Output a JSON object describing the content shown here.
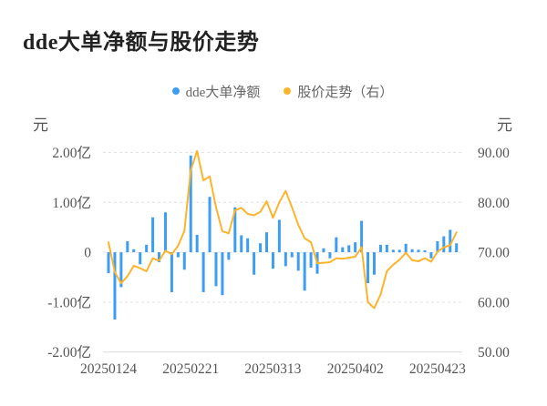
{
  "title": "dde大单净额与股价走势",
  "legend": {
    "items": [
      {
        "label": "dde大单净额",
        "color": "#3d9df2"
      },
      {
        "label": "股价走势（右）",
        "color": "#fcb42c"
      }
    ]
  },
  "left_axis": {
    "unit": "元",
    "tick_labels": [
      "2.00亿",
      "1.00亿",
      "0",
      "-1.00亿",
      "-2.00亿"
    ],
    "values": [
      2,
      1,
      0,
      -1,
      -2
    ]
  },
  "right_axis": {
    "unit": "元",
    "tick_labels": [
      "90.00",
      "80.00",
      "70.00",
      "60.00",
      "50.00"
    ],
    "values": [
      90,
      80,
      70,
      60,
      50
    ]
  },
  "x_axis": {
    "tick_labels": [
      "20250124",
      "20250221",
      "20250313",
      "20250402",
      "20250423"
    ],
    "tick_indices": [
      0,
      13,
      26,
      39,
      52
    ]
  },
  "chart_data": {
    "type": "bar+line",
    "title": "dde大单净额与股价走势",
    "x_tick_labels": [
      "20250124",
      "20250221",
      "20250313",
      "20250402",
      "20250423"
    ],
    "x_tick_indices": [
      0,
      13,
      26,
      39,
      52
    ],
    "left_ylim": [
      -2,
      2
    ],
    "left_unit": "亿元",
    "right_ylim": [
      50,
      90
    ],
    "right_unit": "元",
    "grid": "dashed",
    "legend_position": "top-center",
    "bar_series": {
      "name": "dde大单净额",
      "axis": "left",
      "unit": "亿元",
      "color": "#3d9df2",
      "values": [
        -0.42,
        -1.35,
        -0.7,
        0.22,
        0.06,
        -0.24,
        0.15,
        0.7,
        -0.2,
        0.8,
        -0.8,
        -0.1,
        -0.35,
        1.94,
        0.35,
        -0.8,
        1.11,
        -0.68,
        -0.86,
        -0.15,
        0.9,
        0.34,
        0.28,
        -0.45,
        0.18,
        0.4,
        -0.33,
        0.65,
        -0.28,
        -0.1,
        -0.37,
        -0.77,
        -0.31,
        -0.43,
        0.08,
        -0.12,
        0.3,
        0.1,
        0.14,
        0.2,
        0.63,
        -0.62,
        -0.45,
        0.15,
        0.15,
        0.05,
        0.05,
        0.17,
        0.06,
        0.05,
        0.04,
        -0.12,
        0.22,
        0.32,
        0.45,
        0.18
      ]
    },
    "line_series": {
      "name": "股价走势（右）",
      "axis": "right",
      "unit": "元",
      "color": "#fcb42c",
      "values": [
        72.0,
        66.0,
        63.8,
        65.2,
        67.3,
        66.8,
        66.2,
        68.8,
        68.3,
        70.3,
        69.6,
        71.3,
        74.3,
        86.4,
        90.3,
        84.4,
        85.2,
        79.0,
        74.2,
        73.8,
        78.4,
        78.9,
        77.7,
        77.4,
        78.1,
        80.2,
        76.9,
        80.0,
        82.3,
        79.0,
        75.5,
        72.8,
        72.0,
        67.8,
        67.9,
        68.0,
        68.8,
        68.7,
        68.9,
        69.1,
        71.0,
        60.0,
        58.8,
        61.5,
        66.2,
        67.5,
        68.5,
        69.9,
        68.4,
        68.2,
        68.8,
        68.1,
        70.1,
        71.0,
        71.4,
        74.0
      ]
    }
  },
  "colors": {
    "background": "#ffffff",
    "title_text": "#222222",
    "legend_text": "#666666",
    "axis_text": "#555555",
    "gridline": "#e3e3e3",
    "baseline": "#dcdcdc",
    "bar": "#3d9df2",
    "line": "#fcb42c"
  }
}
